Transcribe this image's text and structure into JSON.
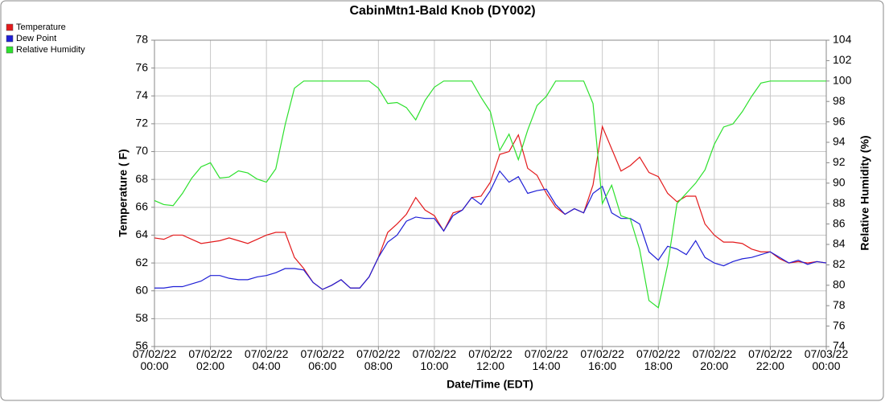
{
  "chart_data": {
    "type": "line",
    "title": "CabinMtn1-Bald Knob (DY002)",
    "xlabel": "Date/Time (EDT)",
    "ylabel": "Temperature ( F)",
    "y2label": "Relative Humidity (%)",
    "legend": "top-left",
    "grid": true,
    "x": [
      "07/02/22 00:00",
      "07/02/22 00:20",
      "07/02/22 00:40",
      "07/02/22 01:00",
      "07/02/22 01:20",
      "07/02/22 01:40",
      "07/02/22 02:00",
      "07/02/22 02:20",
      "07/02/22 02:40",
      "07/02/22 03:00",
      "07/02/22 03:20",
      "07/02/22 03:40",
      "07/02/22 04:00",
      "07/02/22 04:20",
      "07/02/22 04:40",
      "07/02/22 05:00",
      "07/02/22 05:20",
      "07/02/22 05:40",
      "07/02/22 06:00",
      "07/02/22 06:20",
      "07/02/22 06:40",
      "07/02/22 07:00",
      "07/02/22 07:20",
      "07/02/22 07:40",
      "07/02/22 08:00",
      "07/02/22 08:20",
      "07/02/22 08:40",
      "07/02/22 09:00",
      "07/02/22 09:20",
      "07/02/22 09:40",
      "07/02/22 10:00",
      "07/02/22 10:20",
      "07/02/22 10:40",
      "07/02/22 11:00",
      "07/02/22 11:20",
      "07/02/22 11:40",
      "07/02/22 12:00",
      "07/02/22 12:20",
      "07/02/22 12:40",
      "07/02/22 13:00",
      "07/02/22 13:20",
      "07/02/22 13:40",
      "07/02/22 14:00",
      "07/02/22 14:20",
      "07/02/22 14:40",
      "07/02/22 15:00",
      "07/02/22 15:20",
      "07/02/22 15:40",
      "07/02/22 16:00",
      "07/02/22 16:20",
      "07/02/22 16:40",
      "07/02/22 17:00",
      "07/02/22 17:20",
      "07/02/22 17:40",
      "07/02/22 18:00",
      "07/02/22 18:20",
      "07/02/22 18:40",
      "07/02/22 19:00",
      "07/02/22 19:20",
      "07/02/22 19:40",
      "07/02/22 20:00",
      "07/02/22 20:20",
      "07/02/22 20:40",
      "07/02/22 21:00",
      "07/02/22 21:20",
      "07/02/22 21:40",
      "07/02/22 22:00",
      "07/02/22 22:20",
      "07/02/22 22:40",
      "07/02/22 23:00",
      "07/02/22 23:20",
      "07/02/22 23:40",
      "07/03/22 00:00"
    ],
    "xlim": [
      "07/02/22 00:00",
      "07/03/22 00:00"
    ],
    "xticks": [
      "07/02/22 00:00",
      "07/02/22 02:00",
      "07/02/22 04:00",
      "07/02/22 06:00",
      "07/02/22 08:00",
      "07/02/22 10:00",
      "07/02/22 12:00",
      "07/02/22 14:00",
      "07/02/22 16:00",
      "07/02/22 18:00",
      "07/02/22 20:00",
      "07/02/22 22:00",
      "07/03/22 00:00"
    ],
    "ylim": [
      56,
      78
    ],
    "yticks": [
      56,
      58,
      60,
      62,
      64,
      66,
      68,
      70,
      72,
      74,
      76,
      78
    ],
    "y2lim": [
      74,
      104
    ],
    "y2ticks": [
      74,
      76,
      78,
      80,
      82,
      84,
      86,
      88,
      90,
      92,
      94,
      96,
      98,
      100,
      102,
      104
    ],
    "series": [
      {
        "name": "Temperature",
        "color": "#e31a1c",
        "values": [
          63.8,
          63.7,
          64.0,
          64.0,
          63.7,
          63.4,
          63.5,
          63.6,
          63.8,
          63.6,
          63.4,
          63.7,
          64.0,
          64.2,
          64.2,
          62.4,
          61.6,
          60.6,
          60.1,
          60.4,
          60.8,
          60.2,
          60.2,
          61.0,
          62.4,
          64.2,
          64.8,
          65.5,
          66.7,
          65.8,
          65.4,
          64.3,
          65.6,
          65.8,
          66.7,
          66.8,
          67.8,
          69.8,
          70.0,
          71.2,
          68.8,
          68.3,
          67.0,
          66.0,
          65.5,
          65.9,
          65.6,
          67.6,
          71.8,
          70.2,
          68.6,
          69.0,
          69.6,
          68.5,
          68.2,
          67.0,
          66.4,
          66.8,
          66.8,
          64.8,
          64.0,
          63.5,
          63.5,
          63.4,
          63.0,
          62.8,
          62.8,
          62.3,
          62.0,
          62.1,
          62.0,
          62.1,
          62.0
        ]
      },
      {
        "name": "Dew Point",
        "color": "#1f1fd6",
        "values": [
          60.2,
          60.2,
          60.3,
          60.3,
          60.5,
          60.7,
          61.1,
          61.1,
          60.9,
          60.8,
          60.8,
          61.0,
          61.1,
          61.3,
          61.6,
          61.6,
          61.5,
          60.6,
          60.1,
          60.4,
          60.8,
          60.2,
          60.2,
          61.0,
          62.4,
          63.5,
          64.0,
          65.0,
          65.3,
          65.2,
          65.2,
          64.3,
          65.4,
          65.8,
          66.7,
          66.2,
          67.2,
          68.6,
          67.8,
          68.2,
          67.0,
          67.2,
          67.3,
          66.2,
          65.5,
          65.9,
          65.6,
          67.0,
          67.5,
          65.6,
          65.2,
          65.2,
          64.8,
          62.8,
          62.2,
          63.2,
          63.0,
          62.6,
          63.6,
          62.4,
          62.0,
          61.8,
          62.1,
          62.3,
          62.4,
          62.6,
          62.8,
          62.4,
          62.0,
          62.2,
          61.9,
          62.1,
          62.0
        ]
      },
      {
        "name": "Relative Humidity",
        "color": "#2de02d",
        "axis": "y2",
        "values": [
          88.3,
          87.9,
          87.8,
          89.0,
          90.5,
          91.6,
          92.0,
          90.5,
          90.6,
          91.2,
          91.0,
          90.4,
          90.1,
          91.4,
          95.7,
          99.3,
          100,
          100,
          100,
          100,
          100,
          100,
          100,
          100,
          99.3,
          97.8,
          97.9,
          97.4,
          96.2,
          98.1,
          99.4,
          100,
          100,
          100,
          100,
          98.4,
          97.0,
          93.2,
          94.8,
          92.3,
          95.2,
          97.6,
          98.5,
          100,
          100,
          100,
          100,
          97.8,
          88.0,
          89.8,
          86.8,
          86.5,
          83.5,
          78.5,
          77.8,
          82.0,
          88.0,
          89.0,
          90.0,
          91.3,
          93.8,
          95.5,
          95.8,
          97.0,
          98.5,
          99.8,
          100,
          100,
          100,
          100,
          100,
          100,
          100
        ]
      }
    ]
  }
}
